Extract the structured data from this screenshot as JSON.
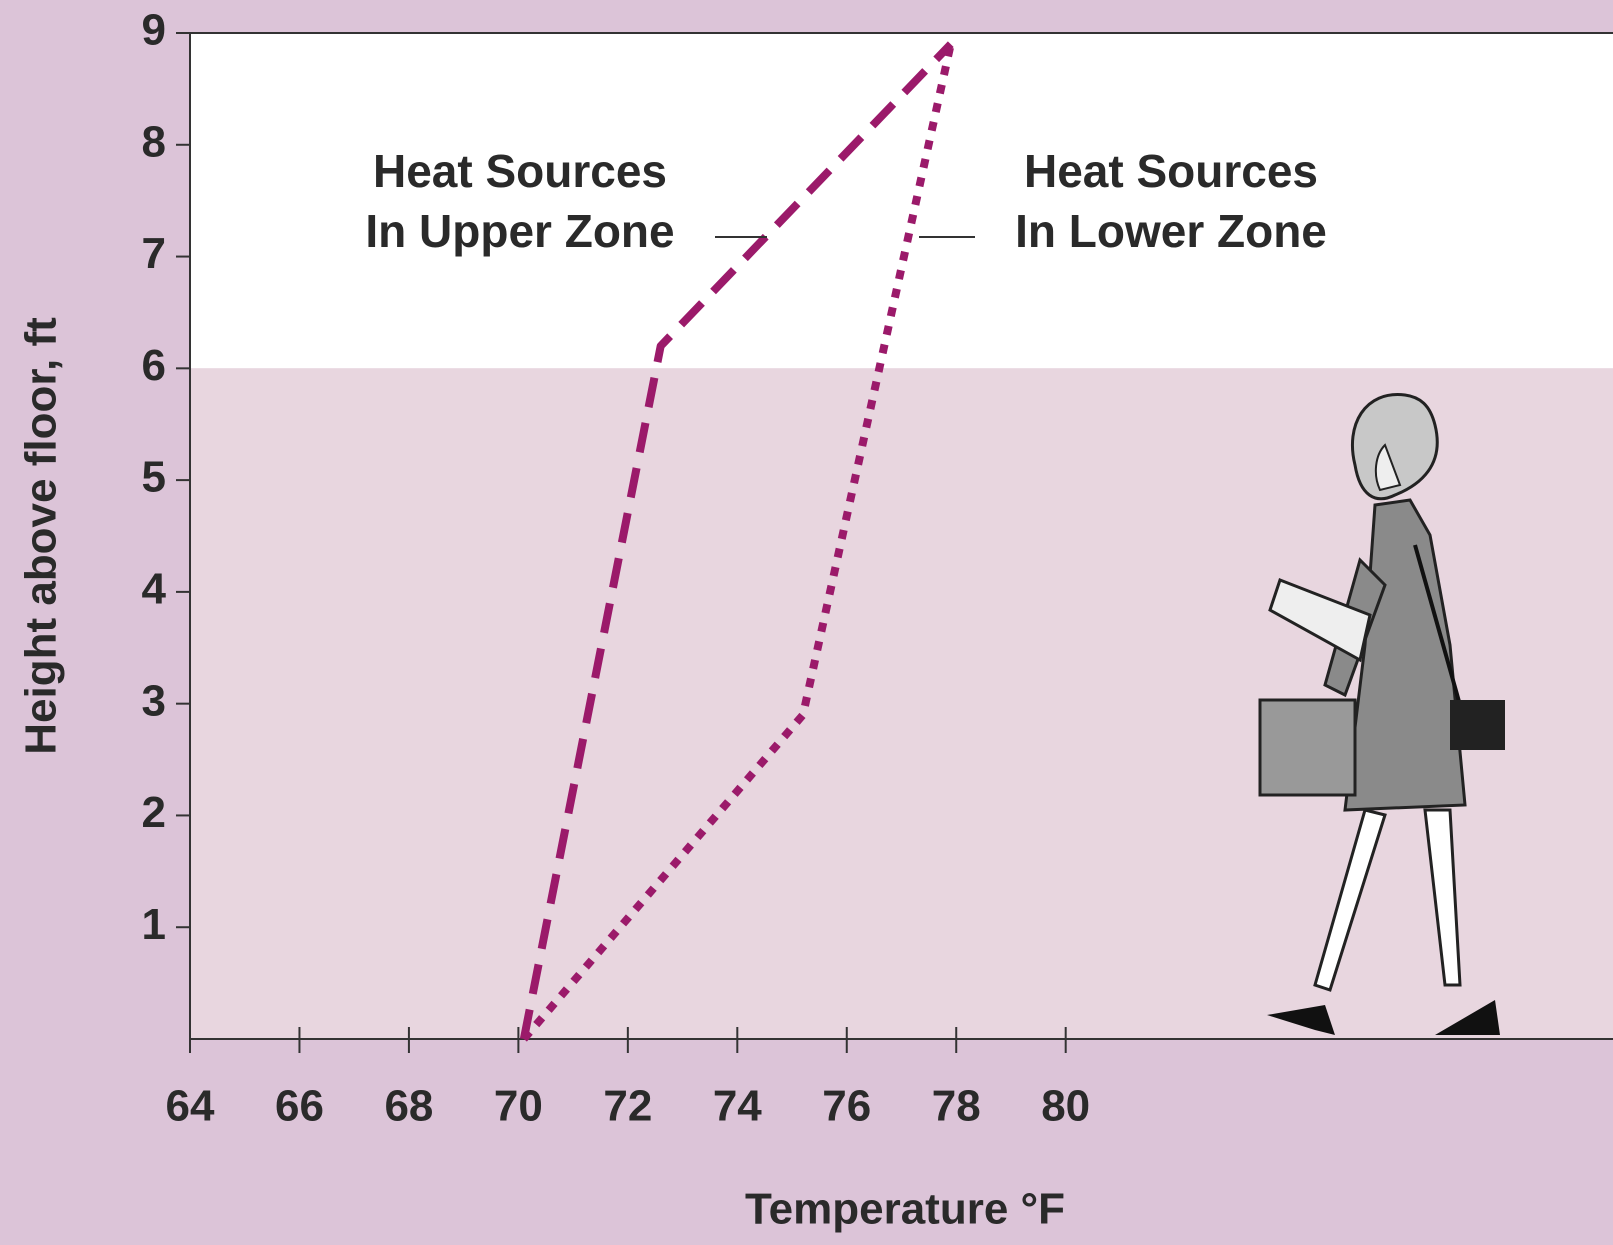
{
  "chart_data": {
    "type": "line",
    "x_label": "Temperature °F",
    "y_label": "Height above floor, ft",
    "xlim": [
      64,
      90
    ],
    "xticks": [
      64,
      66,
      68,
      70,
      72,
      74,
      76,
      78,
      80
    ],
    "ylim": [
      0,
      9
    ],
    "yticks": [
      1,
      2,
      3,
      4,
      5,
      6,
      7,
      8,
      9
    ],
    "shaded_below": 6,
    "series": [
      {
        "label": [
          "Heat Sources",
          "In Upper Zone"
        ],
        "color": "#9b1a6a",
        "dash": "30 16",
        "x": [
          70.1,
          72.6,
          77.9
        ],
        "values": [
          0,
          6.2,
          8.9
        ]
      },
      {
        "label": [
          "Heat Sources",
          "In Lower Zone"
        ],
        "color": "#9b1a6a",
        "dash": "9 10",
        "x": [
          70.1,
          75.2,
          77.9
        ],
        "values": [
          0,
          2.9,
          8.9
        ]
      }
    ]
  }
}
